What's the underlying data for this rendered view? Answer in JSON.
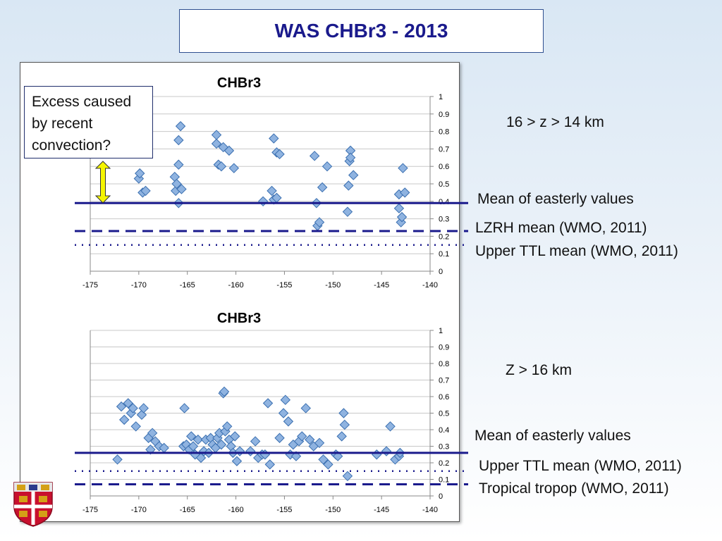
{
  "slide_title": "WAS CHBr3 - 2013",
  "callout_text": "Excess caused by recent convection?",
  "top_annotations": {
    "altitude": "16 > z > 14 km",
    "mean_label": "Mean of easterly values",
    "dashed_label": "LZRH mean (WMO, 2011)",
    "dotted_label": "Upper TTL  mean (WMO, 2011)"
  },
  "bottom_annotations": {
    "altitude": "Z > 16 km",
    "mean_label": "Mean of easterly values",
    "dotted_label": "Upper TTL  mean (WMO, 2011)",
    "dashed_label": "Tropical tropop (WMO, 2011)"
  },
  "colors": {
    "title": "#1a1a8c",
    "marker_fill": "#8fb3e0",
    "marker_stroke": "#3a6fb0",
    "mean_line": "#1a1a8c",
    "arrow_fill": "#f5f500"
  },
  "icons": {
    "crest": "university-crest-icon",
    "arrow": "double-arrow-icon"
  },
  "chart_data": [
    {
      "type": "scatter",
      "title": "CHBr3",
      "xlim": [
        -175,
        -140
      ],
      "ylim": [
        0,
        1
      ],
      "xticks": [
        -175,
        -170,
        -165,
        -160,
        -155,
        -150,
        -145,
        -140
      ],
      "yticks": [
        0,
        0.1,
        0.2,
        0.3,
        0.4,
        0.5,
        0.6,
        0.7,
        0.8,
        0.9,
        1
      ],
      "ytick_labels": [
        "0",
        "0.1",
        "0.2",
        "0.3",
        "0.4",
        "0.5",
        "0.6",
        "0.7",
        "0.8",
        "0.9",
        "1"
      ],
      "y_axis_side": "right",
      "grid": true,
      "reference_lines": [
        {
          "style": "solid",
          "y": 0.39
        },
        {
          "style": "dashed",
          "y": 0.23
        },
        {
          "style": "dotted",
          "y": 0.15
        }
      ],
      "points": [
        [
          -170,
          0.53
        ],
        [
          -169.9,
          0.56
        ],
        [
          -169.6,
          0.45
        ],
        [
          -169.3,
          0.46
        ],
        [
          -166.3,
          0.54
        ],
        [
          -166.2,
          0.46
        ],
        [
          -166.1,
          0.5
        ],
        [
          -165.9,
          0.61
        ],
        [
          -165.9,
          0.75
        ],
        [
          -165.7,
          0.83
        ],
        [
          -165.6,
          0.47
        ],
        [
          -165.9,
          0.39
        ],
        [
          -162,
          0.78
        ],
        [
          -162,
          0.73
        ],
        [
          -161.8,
          0.61
        ],
        [
          -161.5,
          0.6
        ],
        [
          -161.3,
          0.71
        ],
        [
          -160.7,
          0.69
        ],
        [
          -160.2,
          0.59
        ],
        [
          -157.2,
          0.4
        ],
        [
          -156.3,
          0.46
        ],
        [
          -156.1,
          0.76
        ],
        [
          -156.1,
          0.41
        ],
        [
          -155.8,
          0.42
        ],
        [
          -155.8,
          0.68
        ],
        [
          -155.5,
          0.67
        ],
        [
          -151.9,
          0.66
        ],
        [
          -151.7,
          0.39
        ],
        [
          -151.6,
          0.26
        ],
        [
          -151.4,
          0.28
        ],
        [
          -151.1,
          0.48
        ],
        [
          -150.6,
          0.6
        ],
        [
          -148.5,
          0.34
        ],
        [
          -148.4,
          0.49
        ],
        [
          -148.3,
          0.63
        ],
        [
          -148.2,
          0.69
        ],
        [
          -148.2,
          0.65
        ],
        [
          -147.9,
          0.55
        ],
        [
          -143.2,
          0.44
        ],
        [
          -143.2,
          0.36
        ],
        [
          -143,
          0.28
        ],
        [
          -142.9,
          0.31
        ],
        [
          -142.8,
          0.59
        ],
        [
          -142.6,
          0.45
        ]
      ]
    },
    {
      "type": "scatter",
      "title": "CHBr3",
      "xlim": [
        -175,
        -140
      ],
      "ylim": [
        0,
        1
      ],
      "xticks": [
        -175,
        -170,
        -165,
        -160,
        -155,
        -150,
        -145,
        -140
      ],
      "yticks": [
        0,
        0.1,
        0.2,
        0.3,
        0.4,
        0.5,
        0.6,
        0.7,
        0.8,
        0.9,
        1
      ],
      "ytick_labels": [
        "0",
        "0.1",
        "0.2",
        "0.3",
        "0.4",
        "0.5",
        "0.6",
        "0.7",
        "0.8",
        "0.9",
        "1"
      ],
      "y_axis_side": "right",
      "grid": true,
      "reference_lines": [
        {
          "style": "solid",
          "y": 0.26
        },
        {
          "style": "dotted",
          "y": 0.15
        },
        {
          "style": "dashed",
          "y": 0.07
        }
      ],
      "points": [
        [
          -172.2,
          0.22
        ],
        [
          -171.8,
          0.54
        ],
        [
          -171.5,
          0.46
        ],
        [
          -171.1,
          0.56
        ],
        [
          -170.8,
          0.5
        ],
        [
          -170.6,
          0.53
        ],
        [
          -170.3,
          0.42
        ],
        [
          -169.7,
          0.49
        ],
        [
          -169.5,
          0.53
        ],
        [
          -169,
          0.35
        ],
        [
          -168.8,
          0.28
        ],
        [
          -168.6,
          0.38
        ],
        [
          -168.3,
          0.33
        ],
        [
          -167.9,
          0.3
        ],
        [
          -167.4,
          0.29
        ],
        [
          -165.4,
          0.3
        ],
        [
          -165.3,
          0.53
        ],
        [
          -165.1,
          0.31
        ],
        [
          -164.8,
          0.28
        ],
        [
          -164.6,
          0.36
        ],
        [
          -164.4,
          0.3
        ],
        [
          -164.2,
          0.25
        ],
        [
          -163.9,
          0.34
        ],
        [
          -163.6,
          0.23
        ],
        [
          -163.3,
          0.27
        ],
        [
          -163.1,
          0.34
        ],
        [
          -162.8,
          0.26
        ],
        [
          -162.6,
          0.35
        ],
        [
          -162.4,
          0.31
        ],
        [
          -162.1,
          0.29
        ],
        [
          -161.9,
          0.35
        ],
        [
          -161.7,
          0.38
        ],
        [
          -161.5,
          0.31
        ],
        [
          -161.3,
          0.62
        ],
        [
          -161.2,
          0.63
        ],
        [
          -161.1,
          0.39
        ],
        [
          -160.9,
          0.42
        ],
        [
          -160.7,
          0.34
        ],
        [
          -160.5,
          0.3
        ],
        [
          -160.3,
          0.26
        ],
        [
          -160.1,
          0.36
        ],
        [
          -159.9,
          0.21
        ],
        [
          -159.6,
          0.27
        ],
        [
          -158.5,
          0.27
        ],
        [
          -158,
          0.33
        ],
        [
          -157.7,
          0.23
        ],
        [
          -157.3,
          0.25
        ],
        [
          -157,
          0.25
        ],
        [
          -156.7,
          0.56
        ],
        [
          -156.5,
          0.19
        ],
        [
          -155.5,
          0.35
        ],
        [
          -155.1,
          0.5
        ],
        [
          -154.9,
          0.58
        ],
        [
          -154.6,
          0.45
        ],
        [
          -154.4,
          0.25
        ],
        [
          -154.1,
          0.31
        ],
        [
          -153.8,
          0.24
        ],
        [
          -153.5,
          0.33
        ],
        [
          -153.2,
          0.36
        ],
        [
          -152.8,
          0.53
        ],
        [
          -152.4,
          0.34
        ],
        [
          -152,
          0.3
        ],
        [
          -151.4,
          0.32
        ],
        [
          -151,
          0.22
        ],
        [
          -150.5,
          0.19
        ],
        [
          -149.7,
          0.25
        ],
        [
          -149.5,
          0.24
        ],
        [
          -149.1,
          0.36
        ],
        [
          -148.9,
          0.5
        ],
        [
          -148.8,
          0.43
        ],
        [
          -148.5,
          0.12
        ],
        [
          -145.5,
          0.25
        ],
        [
          -144.5,
          0.27
        ],
        [
          -144.1,
          0.42
        ],
        [
          -143.6,
          0.22
        ],
        [
          -143.2,
          0.24
        ],
        [
          -143.1,
          0.26
        ]
      ]
    }
  ]
}
